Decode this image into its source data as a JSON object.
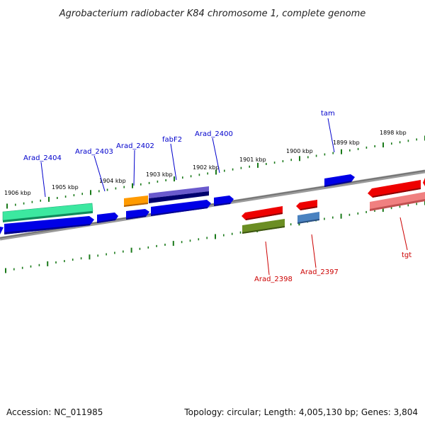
{
  "title": "Agrobacterium radiobacter K84 chromosome 1, complete genome",
  "footer": {
    "accession": "Accession: NC_011985",
    "summary": "Topology: circular; Length: 4,005,130 bp; Genes: 3,804"
  },
  "colors": {
    "forward_label": "#0000cc",
    "reverse_label": "#cc0000",
    "tick": "#1a7a1a",
    "backbone": "#808080"
  },
  "ticks": [
    {
      "kbp": 1906,
      "label": "1906 kbp"
    },
    {
      "kbp": 1905,
      "label": "1905 kbp"
    },
    {
      "kbp": 1904,
      "label": "1904 kbp"
    },
    {
      "kbp": 1903,
      "label": "1903 kbp"
    },
    {
      "kbp": 1902,
      "label": "1902 kbp"
    },
    {
      "kbp": 1901,
      "label": "1901 kbp"
    },
    {
      "kbp": 1900,
      "label": "1900 kbp"
    },
    {
      "kbp": 1899,
      "label": "1899 kbp"
    },
    {
      "kbp": 1898,
      "label": "1898 kbp"
    }
  ],
  "genes": [
    {
      "label": "Arad_2404",
      "strand": "forward",
      "color": "blue"
    },
    {
      "label": "Arad_2403",
      "strand": "forward",
      "color": "blue"
    },
    {
      "label": "Arad_2402",
      "strand": "forward",
      "color": "blue"
    },
    {
      "label": "fabF2",
      "strand": "forward",
      "color": "blue"
    },
    {
      "label": "Arad_2400",
      "strand": "forward",
      "color": "blue"
    },
    {
      "label": "tam",
      "strand": "forward",
      "color": "blue"
    },
    {
      "label": "Arad_2398",
      "strand": "reverse",
      "color": "red"
    },
    {
      "label": "Arad_2397",
      "strand": "reverse",
      "color": "red"
    },
    {
      "label": "tgt",
      "strand": "reverse",
      "color": "red"
    }
  ]
}
